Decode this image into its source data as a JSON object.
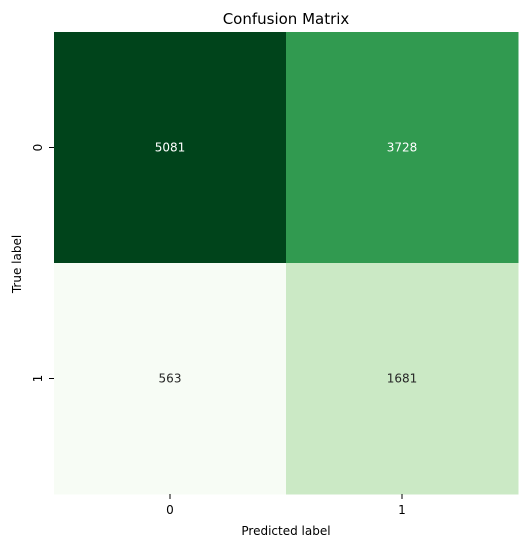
{
  "chart_data": {
    "type": "heatmap",
    "title": "Confusion Matrix",
    "xlabel": "Predicted label",
    "ylabel": "True label",
    "x_categories": [
      "0",
      "1"
    ],
    "y_categories": [
      "0",
      "1"
    ],
    "values": [
      [
        5081,
        3728
      ],
      [
        563,
        1681
      ]
    ],
    "colormap": "Greens",
    "colorbar": false,
    "colors": [
      [
        "#00441b",
        "#319a50"
      ],
      [
        "#f7fcf5",
        "#cbe9c5"
      ]
    ],
    "text_colors": [
      [
        "#ffffff",
        "#ffffff"
      ],
      [
        "#262626",
        "#262626"
      ]
    ]
  }
}
